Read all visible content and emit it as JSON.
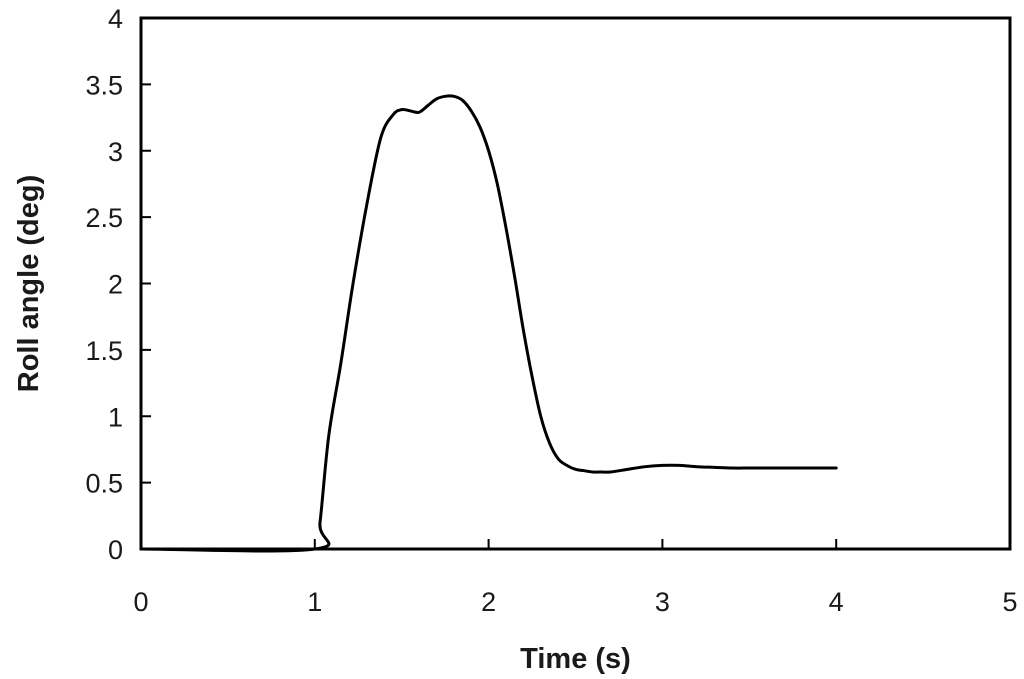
{
  "chart_data": {
    "type": "line",
    "title": "",
    "xlabel": "Time (s)",
    "ylabel": "Roll angle (deg)",
    "xlim": [
      0,
      5
    ],
    "ylim": [
      0,
      4
    ],
    "xticks": [
      "0",
      "1",
      "2",
      "3",
      "4",
      "5"
    ],
    "yticks": [
      "0",
      "0.5",
      "1",
      "1.5",
      "2",
      "2.5",
      "3",
      "3.5",
      "4"
    ],
    "grid": false,
    "legend": "none",
    "line_color": "#000000",
    "series": [
      {
        "x": [
          0,
          1.0,
          1.03,
          1.08,
          1.15,
          1.22,
          1.3,
          1.38,
          1.45,
          1.5,
          1.55,
          1.6,
          1.65,
          1.7,
          1.75,
          1.8,
          1.85,
          1.9,
          1.95,
          2.0,
          2.05,
          2.1,
          2.15,
          2.2,
          2.25,
          2.3,
          2.35,
          2.4,
          2.45,
          2.5,
          2.55,
          2.6,
          2.65,
          2.7,
          2.8,
          2.9,
          3.0,
          3.1,
          3.2,
          3.3,
          3.4,
          3.5,
          3.6,
          3.7,
          3.8,
          3.9,
          4.0
        ],
        "values": [
          0,
          0,
          0.2,
          0.85,
          1.4,
          2.0,
          2.6,
          3.1,
          3.27,
          3.31,
          3.3,
          3.29,
          3.34,
          3.39,
          3.41,
          3.41,
          3.38,
          3.3,
          3.18,
          3.0,
          2.75,
          2.42,
          2.05,
          1.65,
          1.3,
          1.0,
          0.8,
          0.68,
          0.63,
          0.6,
          0.59,
          0.58,
          0.58,
          0.58,
          0.6,
          0.62,
          0.63,
          0.63,
          0.62,
          0.615,
          0.61,
          0.61,
          0.61,
          0.61,
          0.61,
          0.61,
          0.61
        ]
      }
    ]
  }
}
